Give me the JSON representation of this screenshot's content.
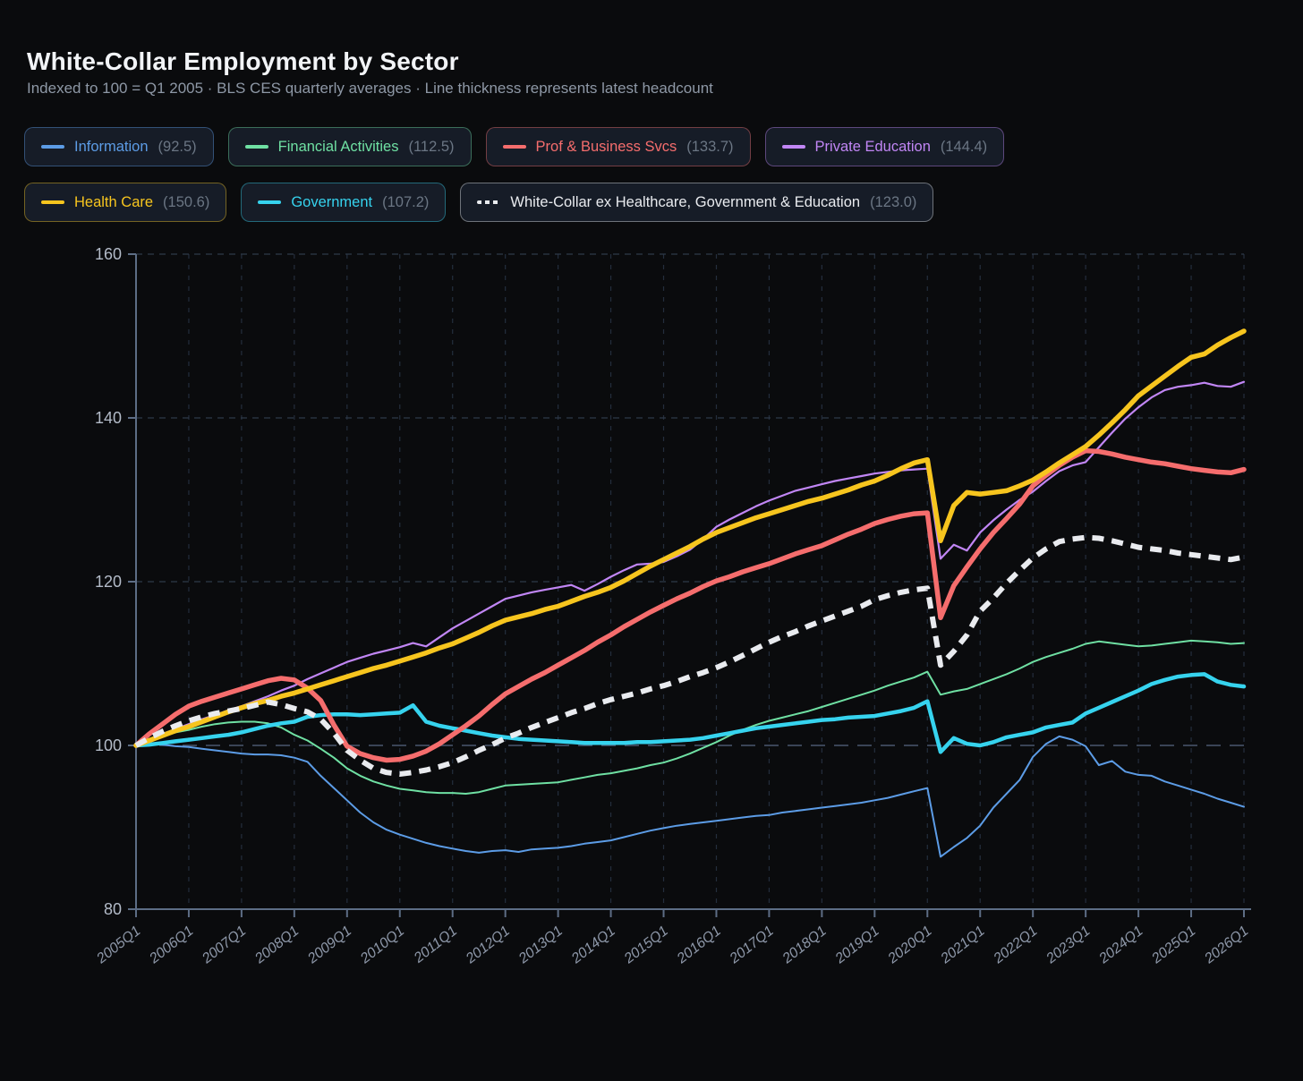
{
  "header": {
    "title": "White-Collar Employment by Sector",
    "subtitle": "Indexed to 100 = Q1 2005 · BLS CES quarterly averages · Line thickness represents latest headcount"
  },
  "legend": [
    {
      "id": "information",
      "label": "Information",
      "value": "(92.5)",
      "color": "#5C9CE6",
      "dash": false
    },
    {
      "id": "financial",
      "label": "Financial Activities",
      "value": "(112.5)",
      "color": "#6FE0A3",
      "dash": false
    },
    {
      "id": "prof_business",
      "label": "Prof & Business Svcs",
      "value": "(133.7)",
      "color": "#F56D6D",
      "dash": false
    },
    {
      "id": "private_education",
      "label": "Private Education",
      "value": "(144.4)",
      "color": "#C186F5",
      "dash": false
    },
    {
      "id": "health_care",
      "label": "Health Care",
      "value": "(150.6)",
      "color": "#F7C51E",
      "dash": false
    },
    {
      "id": "government",
      "label": "Government",
      "value": "(107.2)",
      "color": "#36D3EE",
      "dash": false
    },
    {
      "id": "white_collar_ex",
      "label": "White-Collar ex Healthcare, Government & Education",
      "value": "(123.0)",
      "color": "#E9EBEF",
      "dash": true
    }
  ],
  "chart_data": {
    "type": "line",
    "title": "White-Collar Employment by Sector",
    "subtitle": "Indexed to 100 = Q1 2005 · BLS CES quarterly averages · Line thickness represents latest headcount",
    "x_unit": "quarter",
    "points_per_label": 4,
    "x_labels": [
      "2005Q1",
      "2006Q1",
      "2007Q1",
      "2008Q1",
      "2009Q1",
      "2010Q1",
      "2011Q1",
      "2012Q1",
      "2013Q1",
      "2014Q1",
      "2015Q1",
      "2016Q1",
      "2017Q1",
      "2018Q1",
      "2019Q1",
      "2020Q1",
      "2021Q1",
      "2022Q1",
      "2023Q1",
      "2024Q1",
      "2025Q1",
      "2026Q1"
    ],
    "y_ticks": [
      80,
      100,
      120,
      140,
      160
    ],
    "ylim": [
      80,
      160
    ],
    "baseline": 100,
    "grid": true,
    "legend_position": "top",
    "series": [
      {
        "id": "information",
        "name": "Information",
        "color": "#5C9CE6",
        "width": 2,
        "dashed": false,
        "latest": 92.5,
        "values": [
          100,
          100.2,
          100.1,
          99.9,
          99.8,
          99.6,
          99.4,
          99.2,
          99.0,
          98.9,
          98.9,
          98.8,
          98.5,
          98.0,
          96.3,
          94.8,
          93.3,
          91.8,
          90.6,
          89.7,
          89.1,
          88.6,
          88.1,
          87.7,
          87.4,
          87.1,
          86.9,
          87.1,
          87.2,
          87.0,
          87.3,
          87.4,
          87.5,
          87.7,
          88.0,
          88.2,
          88.4,
          88.8,
          89.2,
          89.6,
          89.9,
          90.2,
          90.4,
          90.6,
          90.8,
          91.0,
          91.2,
          91.4,
          91.5,
          91.8,
          92.0,
          92.2,
          92.4,
          92.6,
          92.8,
          93.0,
          93.3,
          93.6,
          94.0,
          94.4,
          94.8,
          86.4,
          87.6,
          88.7,
          90.2,
          92.4,
          94.1,
          95.8,
          98.6,
          100.2,
          101.1,
          100.7,
          99.9,
          97.6,
          98.1,
          96.8,
          96.4,
          96.3,
          95.6,
          95.1,
          94.6,
          94.1,
          93.5,
          93.0,
          92.5
        ]
      },
      {
        "id": "financial",
        "name": "Financial Activities",
        "color": "#6FE0A3",
        "width": 2,
        "dashed": false,
        "latest": 112.5,
        "values": [
          100,
          100.6,
          101.1,
          101.6,
          101.9,
          102.3,
          102.6,
          102.8,
          102.9,
          102.9,
          102.7,
          102.2,
          101.3,
          100.6,
          99.6,
          98.5,
          97.2,
          96.3,
          95.6,
          95.1,
          94.7,
          94.5,
          94.3,
          94.2,
          94.2,
          94.1,
          94.3,
          94.7,
          95.1,
          95.2,
          95.3,
          95.4,
          95.5,
          95.8,
          96.1,
          96.4,
          96.6,
          96.9,
          97.2,
          97.6,
          97.9,
          98.4,
          99.0,
          99.7,
          100.4,
          101.2,
          101.9,
          102.5,
          103.0,
          103.4,
          103.8,
          104.2,
          104.7,
          105.2,
          105.7,
          106.2,
          106.7,
          107.3,
          107.8,
          108.3,
          109.0,
          106.2,
          106.6,
          106.9,
          107.5,
          108.1,
          108.7,
          109.4,
          110.2,
          110.8,
          111.3,
          111.8,
          112.4,
          112.7,
          112.5,
          112.3,
          112.1,
          112.2,
          112.4,
          112.6,
          112.8,
          112.7,
          112.6,
          112.4,
          112.5
        ]
      },
      {
        "id": "private_education",
        "name": "Private Education",
        "color": "#C186F5",
        "width": 2.2,
        "dashed": false,
        "latest": 144.4,
        "values": [
          100,
          100.7,
          101.4,
          102.0,
          102.6,
          103.2,
          103.7,
          104.3,
          104.8,
          105.4,
          106.0,
          106.7,
          107.3,
          108.1,
          108.8,
          109.5,
          110.2,
          110.7,
          111.2,
          111.6,
          112.0,
          112.5,
          112.1,
          113.2,
          114.3,
          115.2,
          116.1,
          117.0,
          117.9,
          118.3,
          118.7,
          119.0,
          119.3,
          119.6,
          118.9,
          119.7,
          120.6,
          121.4,
          122.1,
          122.2,
          122.4,
          123.1,
          123.9,
          125.2,
          126.7,
          127.6,
          128.4,
          129.2,
          129.9,
          130.5,
          131.1,
          131.5,
          131.9,
          132.3,
          132.6,
          132.9,
          133.2,
          133.4,
          133.6,
          133.7,
          133.8,
          122.8,
          124.5,
          123.8,
          126.0,
          127.5,
          128.8,
          130.0,
          131.0,
          132.3,
          133.5,
          134.2,
          134.6,
          136.4,
          138.2,
          139.9,
          141.3,
          142.5,
          143.4,
          143.8,
          144.0,
          144.3,
          143.9,
          143.8,
          144.4
        ]
      },
      {
        "id": "government",
        "name": "Government",
        "color": "#36D3EE",
        "width": 4.5,
        "dashed": false,
        "latest": 107.2,
        "values": [
          100,
          100.1,
          100.3,
          100.5,
          100.7,
          100.9,
          101.1,
          101.3,
          101.6,
          102.0,
          102.4,
          102.7,
          102.9,
          103.5,
          103.7,
          103.8,
          103.8,
          103.7,
          103.8,
          103.9,
          104.0,
          104.9,
          102.9,
          102.4,
          102.1,
          101.8,
          101.5,
          101.2,
          101.0,
          100.8,
          100.7,
          100.6,
          100.5,
          100.4,
          100.3,
          100.3,
          100.3,
          100.3,
          100.4,
          100.4,
          100.5,
          100.6,
          100.7,
          100.9,
          101.2,
          101.5,
          101.8,
          102.1,
          102.3,
          102.5,
          102.7,
          102.9,
          103.1,
          103.2,
          103.4,
          103.5,
          103.6,
          103.9,
          104.2,
          104.6,
          105.4,
          99.2,
          100.9,
          100.2,
          100.0,
          100.4,
          101.0,
          101.3,
          101.6,
          102.2,
          102.5,
          102.8,
          103.9,
          104.6,
          105.3,
          106.0,
          106.7,
          107.5,
          108.0,
          108.4,
          108.6,
          108.7,
          107.8,
          107.4,
          107.2
        ]
      },
      {
        "id": "prof_business",
        "name": "Prof & Business Svcs",
        "color": "#F56D6D",
        "width": 5.5,
        "dashed": false,
        "latest": 133.7,
        "values": [
          100,
          101.4,
          102.6,
          103.8,
          104.8,
          105.4,
          105.9,
          106.4,
          106.9,
          107.4,
          107.9,
          108.2,
          108.0,
          107.0,
          105.5,
          102.5,
          99.9,
          99.0,
          98.5,
          98.2,
          98.3,
          98.7,
          99.3,
          100.2,
          101.3,
          102.4,
          103.6,
          105.0,
          106.3,
          107.2,
          108.1,
          108.9,
          109.8,
          110.7,
          111.6,
          112.6,
          113.5,
          114.5,
          115.4,
          116.3,
          117.1,
          117.9,
          118.6,
          119.4,
          120.1,
          120.6,
          121.2,
          121.7,
          122.2,
          122.8,
          123.4,
          123.9,
          124.4,
          125.1,
          125.8,
          126.4,
          127.1,
          127.6,
          128.0,
          128.3,
          128.4,
          115.6,
          119.5,
          121.8,
          124.0,
          126.0,
          127.7,
          129.5,
          131.7,
          133.0,
          134.2,
          135.2,
          136.0,
          135.9,
          135.6,
          135.2,
          134.9,
          134.6,
          134.4,
          134.1,
          133.8,
          133.6,
          133.4,
          133.3,
          133.7
        ]
      },
      {
        "id": "health_care",
        "name": "Health Care",
        "color": "#F7C51E",
        "width": 5.5,
        "dashed": false,
        "latest": 150.6,
        "values": [
          100,
          100.6,
          101.2,
          101.8,
          102.3,
          102.9,
          103.5,
          104.1,
          104.6,
          105.1,
          105.5,
          106.0,
          106.4,
          106.9,
          107.4,
          107.9,
          108.4,
          108.9,
          109.4,
          109.8,
          110.3,
          110.8,
          111.3,
          111.9,
          112.4,
          113.1,
          113.8,
          114.6,
          115.3,
          115.7,
          116.1,
          116.6,
          117.0,
          117.6,
          118.2,
          118.7,
          119.3,
          120.1,
          121.0,
          121.9,
          122.7,
          123.5,
          124.3,
          125.2,
          126.0,
          126.6,
          127.2,
          127.8,
          128.3,
          128.8,
          129.3,
          129.8,
          130.2,
          130.7,
          131.2,
          131.8,
          132.3,
          133.0,
          133.8,
          134.5,
          134.9,
          125.0,
          129.3,
          130.9,
          130.7,
          130.9,
          131.1,
          131.7,
          132.4,
          133.4,
          134.5,
          135.5,
          136.5,
          137.9,
          139.4,
          141.0,
          142.7,
          143.9,
          145.1,
          146.3,
          147.4,
          147.8,
          148.9,
          149.8,
          150.6
        ]
      },
      {
        "id": "white_collar_ex",
        "name": "White-Collar ex Healthcare, Government & Education",
        "color": "#E9EBEF",
        "width": 6,
        "dashed": true,
        "latest": 123.0,
        "values": [
          100,
          100.9,
          101.7,
          102.4,
          103.0,
          103.5,
          103.9,
          104.2,
          104.5,
          104.9,
          105.3,
          105.0,
          104.5,
          104.1,
          103.2,
          101.5,
          99.4,
          98.2,
          97.2,
          96.7,
          96.5,
          96.7,
          97.0,
          97.4,
          97.9,
          98.6,
          99.4,
          100.1,
          100.9,
          101.5,
          102.2,
          102.8,
          103.4,
          104.0,
          104.5,
          105.1,
          105.6,
          106.0,
          106.4,
          106.9,
          107.3,
          107.8,
          108.4,
          108.9,
          109.5,
          110.2,
          111.0,
          111.8,
          112.6,
          113.3,
          113.9,
          114.6,
          115.2,
          115.8,
          116.4,
          117.0,
          117.8,
          118.3,
          118.7,
          119.0,
          119.2,
          109.8,
          111.5,
          113.5,
          116.4,
          118.0,
          119.8,
          121.4,
          122.9,
          124.0,
          124.9,
          125.2,
          125.4,
          125.3,
          125.0,
          124.6,
          124.2,
          124.0,
          123.8,
          123.5,
          123.3,
          123.1,
          122.9,
          122.7,
          123.0
        ]
      }
    ]
  }
}
